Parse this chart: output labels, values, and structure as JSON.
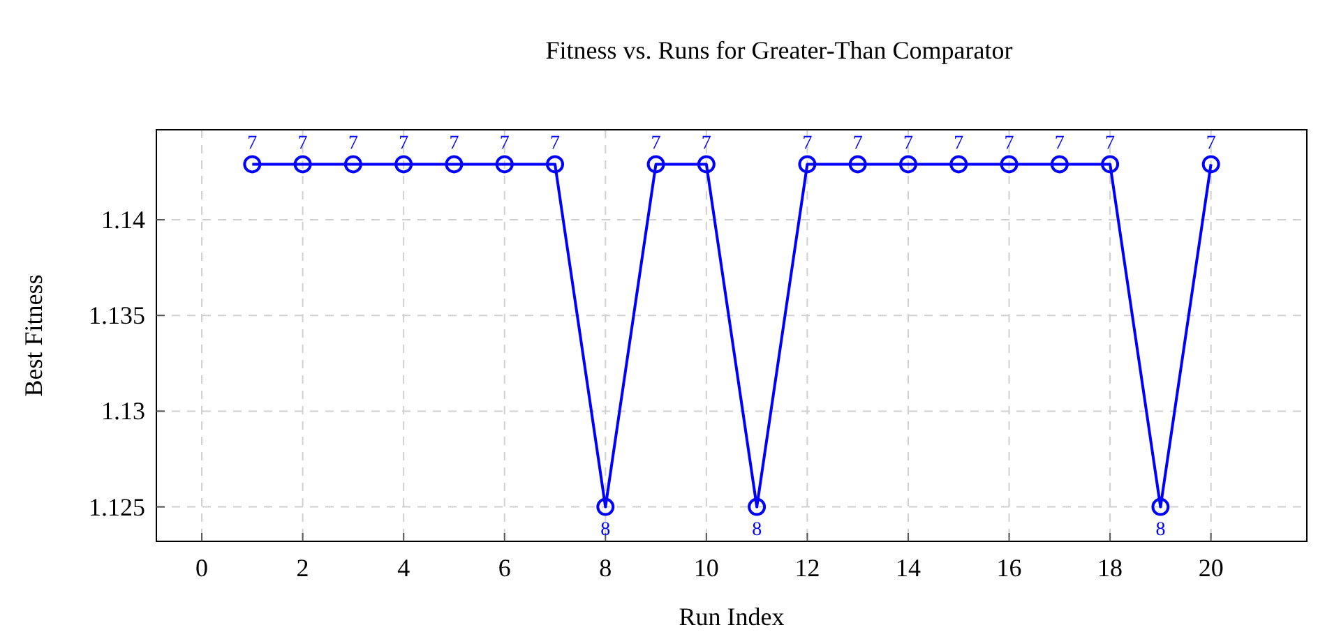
{
  "chart_data": {
    "type": "line",
    "title": "Fitness vs. Runs for Greater-Than Comparator",
    "xlabel": "Run Index",
    "ylabel": "Best Fitness",
    "x": [
      1,
      2,
      3,
      4,
      5,
      6,
      7,
      8,
      9,
      10,
      11,
      12,
      13,
      14,
      15,
      16,
      17,
      18,
      19,
      20
    ],
    "series": [
      {
        "color": "#0000ff",
        "values": [
          1.1429,
          1.1429,
          1.1429,
          1.1429,
          1.1429,
          1.1429,
          1.1429,
          1.125,
          1.1429,
          1.1429,
          1.125,
          1.1429,
          1.1429,
          1.1429,
          1.1429,
          1.1429,
          1.1429,
          1.1429,
          1.125,
          1.1429
        ]
      }
    ],
    "annotations": [
      {
        "text": "7",
        "x": 1,
        "y": 1.1429
      },
      {
        "text": "7",
        "x": 2,
        "y": 1.1429
      },
      {
        "text": "7",
        "x": 3,
        "y": 1.1429
      },
      {
        "text": "7",
        "x": 4,
        "y": 1.1429
      },
      {
        "text": "7",
        "x": 5,
        "y": 1.1429
      },
      {
        "text": "7",
        "x": 6,
        "y": 1.1429
      },
      {
        "text": "7",
        "x": 7,
        "y": 1.1429
      },
      {
        "text": "8",
        "x": 8,
        "y": 1.125
      },
      {
        "text": "7",
        "x": 9,
        "y": 1.1429
      },
      {
        "text": "7",
        "x": 10,
        "y": 1.1429
      },
      {
        "text": "8",
        "x": 11,
        "y": 1.125
      },
      {
        "text": "7",
        "x": 12,
        "y": 1.1429
      },
      {
        "text": "7",
        "x": 13,
        "y": 1.1429
      },
      {
        "text": "7",
        "x": 14,
        "y": 1.1429
      },
      {
        "text": "7",
        "x": 15,
        "y": 1.1429
      },
      {
        "text": "7",
        "x": 16,
        "y": 1.1429
      },
      {
        "text": "7",
        "x": 17,
        "y": 1.1429
      },
      {
        "text": "7",
        "x": 18,
        "y": 1.1429
      },
      {
        "text": "8",
        "x": 19,
        "y": 1.125
      },
      {
        "text": "7",
        "x": 20,
        "y": 1.1429
      }
    ],
    "xlim": [
      -0.9,
      21.9
    ],
    "xticks": [
      0,
      2,
      4,
      6,
      8,
      10,
      12,
      14,
      16,
      18,
      20
    ],
    "ylim": [
      1.1232,
      1.1447
    ],
    "yticks": [
      1.125,
      1.13,
      1.135,
      1.14
    ],
    "grid": true,
    "marker": "circle",
    "line_style": "solid"
  }
}
